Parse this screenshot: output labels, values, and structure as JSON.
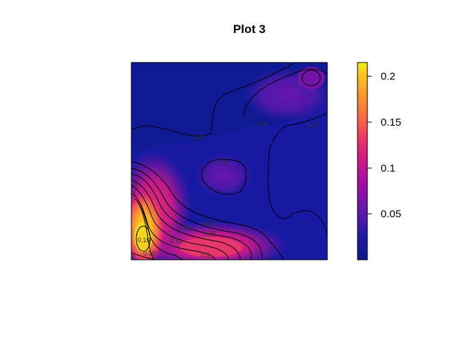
{
  "chart_data": {
    "type": "heatmap",
    "title": "Plot 3",
    "xlabel": "",
    "ylabel": "",
    "colorbar": {
      "min": 0.0,
      "max": 0.215,
      "ticks": [
        {
          "value": 0.05,
          "label": "0.05"
        },
        {
          "value": 0.1,
          "label": "0.1"
        },
        {
          "value": 0.15,
          "label": "0.15"
        },
        {
          "value": 0.2,
          "label": "0.2"
        }
      ],
      "colors": [
        "#0d1a8c",
        "#1f1aa0",
        "#4a1aa8",
        "#7a14a8",
        "#a6109c",
        "#cc1a86",
        "#e8306c",
        "#f5584f",
        "#f98238",
        "#fbaa28",
        "#f8d21e",
        "#f2f21c"
      ]
    },
    "grid": false,
    "contour_labels": [
      "0.04",
      "0.02",
      "0.02",
      "0.04",
      "0.04",
      "0.06",
      "0.1",
      "0.12",
      "0.14",
      "0.16",
      "0.18",
      "0.08"
    ]
  }
}
